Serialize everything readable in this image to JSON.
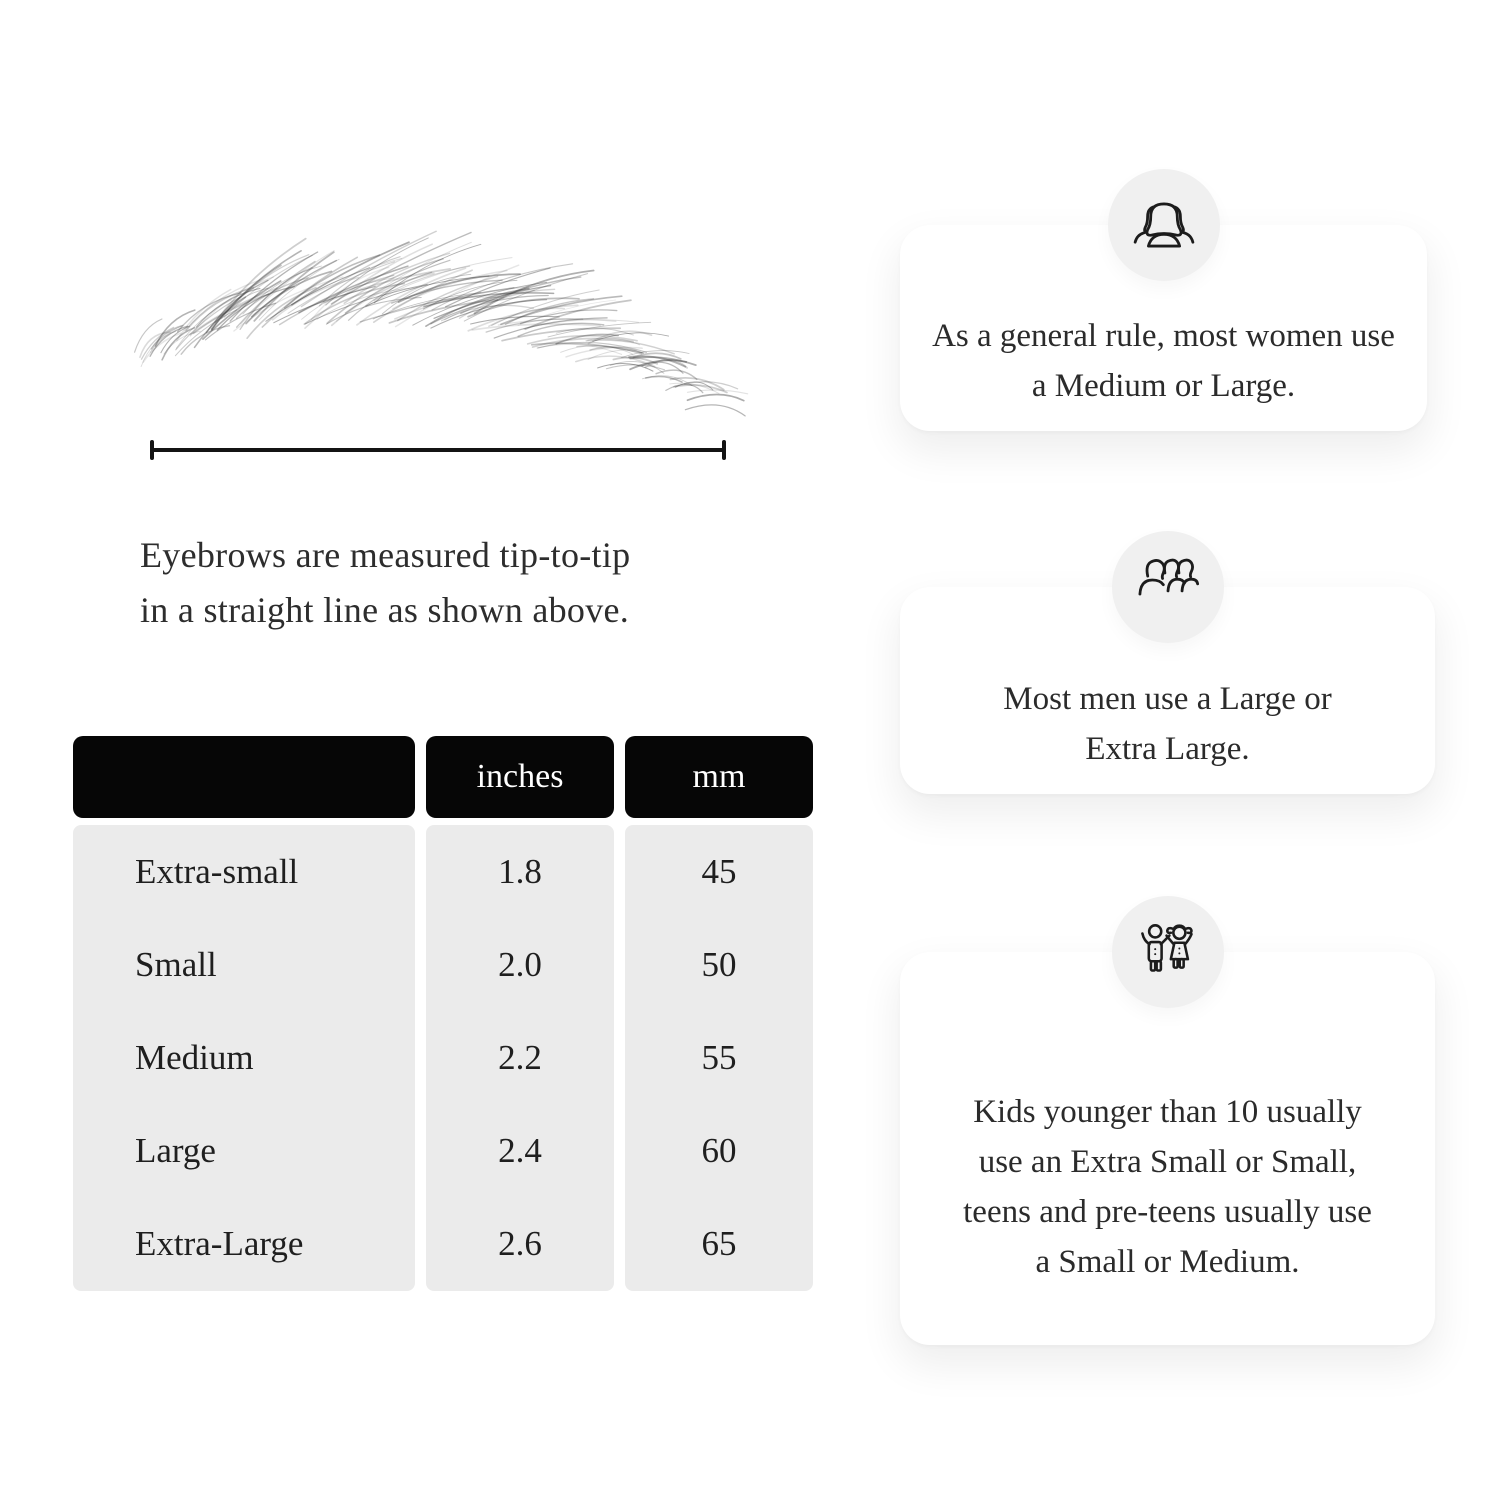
{
  "page": {
    "background": "#ffffff"
  },
  "measurement": {
    "caption_line1": "Eyebrows are measured tip-to-tip",
    "caption_line2": "in a straight line as shown above."
  },
  "size_table": {
    "columns": [
      "",
      "inches",
      "mm"
    ],
    "header_bg": "#060606",
    "header_text_color": "#ffffff",
    "body_bg": "#ebebeb",
    "rows": [
      {
        "label": "Extra-small",
        "inches": "1.8",
        "mm": "45"
      },
      {
        "label": "Small",
        "inches": "2.0",
        "mm": "50"
      },
      {
        "label": "Medium",
        "inches": "2.2",
        "mm": "55"
      },
      {
        "label": "Large",
        "inches": "2.4",
        "mm": "60"
      },
      {
        "label": "Extra-Large",
        "inches": "2.6",
        "mm": "65"
      }
    ]
  },
  "cards": [
    {
      "icon": "women-group-icon",
      "text": "As a general rule, most women use a Medium or Large."
    },
    {
      "icon": "men-group-icon",
      "text": "Most men use a Large or Extra Large."
    },
    {
      "icon": "kids-icon",
      "text": "Kids younger than 10 usually use an Extra Small or Small, teens and pre-teens usually use a Small or Medium."
    }
  ]
}
